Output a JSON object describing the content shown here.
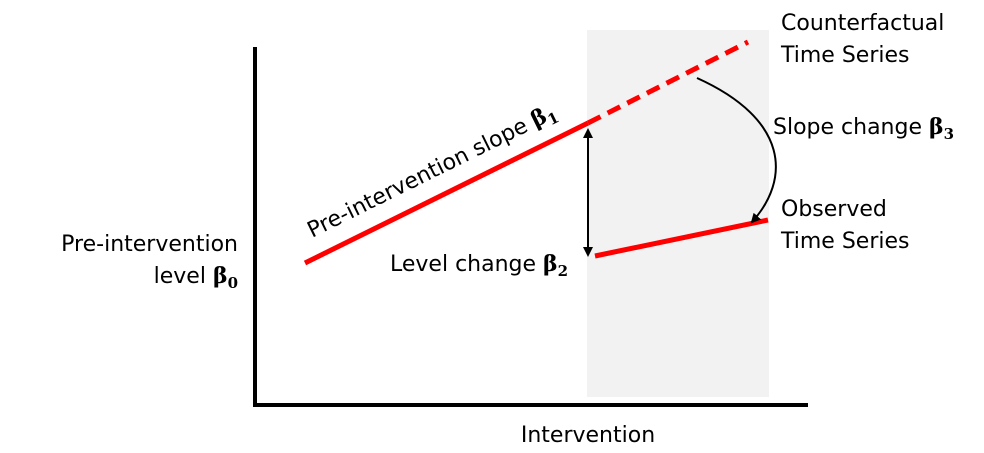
{
  "labels": {
    "pre_slope": {
      "text": "Pre-intervention slope",
      "symbol": "β",
      "subscript": "1"
    },
    "counterfactual": {
      "line1": "Counterfactual",
      "line2": "Time Series"
    },
    "slope_change": {
      "text": "Slope change",
      "symbol": "β",
      "subscript": "3"
    },
    "observed": {
      "line1": "Observed",
      "line2": "Time Series"
    },
    "level_change": {
      "text": "Level change",
      "symbol": "β",
      "subscript": "2"
    },
    "pre_level": {
      "line1": "Pre-intervention",
      "line2": "level",
      "symbol": "β",
      "subscript": "0"
    },
    "x_axis": "Intervention"
  }
}
